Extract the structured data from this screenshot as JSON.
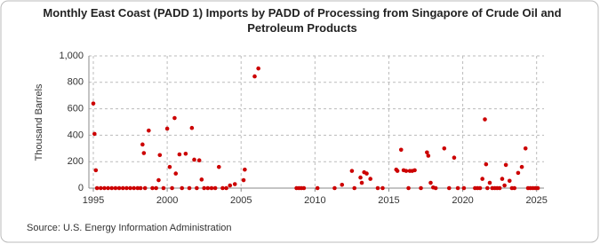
{
  "chart_data": {
    "type": "scatter",
    "title": "Monthly East Coast (PADD 1) Imports by PADD of Processing from Singapore of Crude Oil and Petroleum Products",
    "y_label": "Thousand Barrels",
    "source": "Source: U.S. Energy Information Administration",
    "color": "#cc0000",
    "grid": true,
    "xlim": [
      1994.7,
      2025.5
    ],
    "xticks": [
      1995,
      2000,
      2005,
      2010,
      2015,
      2020,
      2025
    ],
    "ylim": [
      0,
      1000
    ],
    "yticks": [
      0,
      200,
      400,
      600,
      800,
      {
        "value": 1000,
        "label": "1,000"
      }
    ],
    "x": [
      1995.0,
      1995.08,
      1995.17,
      1995.25,
      1995.5,
      1995.75,
      1996,
      1996.25,
      1996.5,
      1996.75,
      1997,
      1997.25,
      1997.5,
      1997.75,
      1998,
      1998.2,
      1998.33,
      1998.42,
      1998.5,
      1998.75,
      1999,
      1999.25,
      1999.42,
      1999.5,
      1999.75,
      2000,
      2000.17,
      2000.33,
      2000.5,
      2000.58,
      2000.83,
      2001,
      2001.25,
      2001.5,
      2001.67,
      2001.83,
      2002,
      2002.17,
      2002.33,
      2002.5,
      2002.75,
      2003,
      2003.25,
      2003.5,
      2003.75,
      2004,
      2004.25,
      2004.58,
      2005.17,
      2005.25,
      2005.92,
      2006.17,
      2008.75,
      2008.92,
      2009.08,
      2009.25,
      2010.17,
      2011.33,
      2011.83,
      2012.5,
      2012.67,
      2013.08,
      2013.17,
      2013.33,
      2013.5,
      2013.75,
      2014.25,
      2014.58,
      2015.5,
      2015.58,
      2015.83,
      2016,
      2016.17,
      2016.33,
      2016.42,
      2016.58,
      2016.75,
      2017.17,
      2017.58,
      2017.67,
      2017.83,
      2018,
      2018.17,
      2018.75,
      2019.08,
      2019.42,
      2019.67,
      2020.08,
      2020.83,
      2021,
      2021.17,
      2021.33,
      2021.5,
      2021.58,
      2021.67,
      2021.83,
      2022,
      2022.17,
      2022.33,
      2022.5,
      2022.67,
      2022.83,
      2022.92,
      2023.17,
      2023.33,
      2023.5,
      2023.75,
      2024,
      2024.25,
      2024.42,
      2024.58,
      2024.75,
      2024.92,
      2025.08
    ],
    "values": [
      640,
      410,
      135,
      0,
      0,
      0,
      0,
      0,
      0,
      0,
      0,
      0,
      0,
      0,
      0,
      0,
      330,
      265,
      0,
      435,
      0,
      0,
      60,
      250,
      0,
      450,
      160,
      0,
      530,
      110,
      255,
      0,
      260,
      0,
      455,
      215,
      0,
      210,
      65,
      0,
      0,
      0,
      0,
      160,
      0,
      0,
      20,
      30,
      60,
      140,
      845,
      905,
      0,
      0,
      0,
      0,
      0,
      0,
      25,
      130,
      0,
      80,
      40,
      120,
      110,
      70,
      0,
      0,
      140,
      130,
      290,
      135,
      130,
      0,
      130,
      130,
      135,
      0,
      270,
      245,
      40,
      5,
      0,
      300,
      0,
      230,
      0,
      0,
      0,
      0,
      0,
      70,
      520,
      180,
      0,
      40,
      0,
      0,
      0,
      0,
      70,
      20,
      175,
      55,
      0,
      0,
      115,
      160,
      300,
      0,
      0,
      0,
      0,
      0
    ]
  }
}
